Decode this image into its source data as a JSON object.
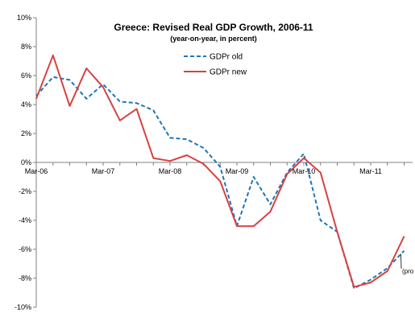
{
  "chart_data": {
    "type": "line",
    "title": "Greece: Revised Real GDP Growth, 2006-11",
    "subtitle": "(year-on-year, in percent)",
    "xlabel": "",
    "ylabel": "",
    "ylim": [
      -10,
      10
    ],
    "yticks": [
      "10%",
      "8%",
      "6%",
      "4%",
      "2%",
      "0%",
      "-2%",
      "-4%",
      "-6%",
      "-8%",
      "-10%"
    ],
    "x_tick_labels": [
      "Mar-06",
      "Mar-07",
      "Mar-08",
      "Mar-09",
      "Mar-10",
      "Mar-11"
    ],
    "grid": false,
    "legend_position": "top-right",
    "annotation": "(pro",
    "series": [
      {
        "name": "GDPr old",
        "color": "#1f77b4",
        "style": "dashed",
        "values": [
          4.6,
          5.9,
          5.7,
          4.4,
          5.4,
          4.2,
          4.1,
          3.6,
          1.7,
          1.6,
          1.0,
          -0.3,
          -4.4,
          -1.0,
          -2.9,
          -0.7,
          0.6,
          -4.0,
          -4.8,
          -8.7,
          -8.1,
          -7.3,
          -6.1
        ]
      },
      {
        "name": "GDPr new",
        "color": "#d94040",
        "style": "solid",
        "values": [
          4.4,
          7.4,
          3.9,
          6.5,
          5.2,
          2.9,
          3.7,
          0.3,
          0.1,
          0.5,
          -0.1,
          -1.3,
          -4.4,
          -4.4,
          -3.4,
          -0.8,
          0.3,
          -0.7,
          -4.8,
          -8.6,
          -8.3,
          -7.5,
          -5.1
        ]
      }
    ]
  }
}
